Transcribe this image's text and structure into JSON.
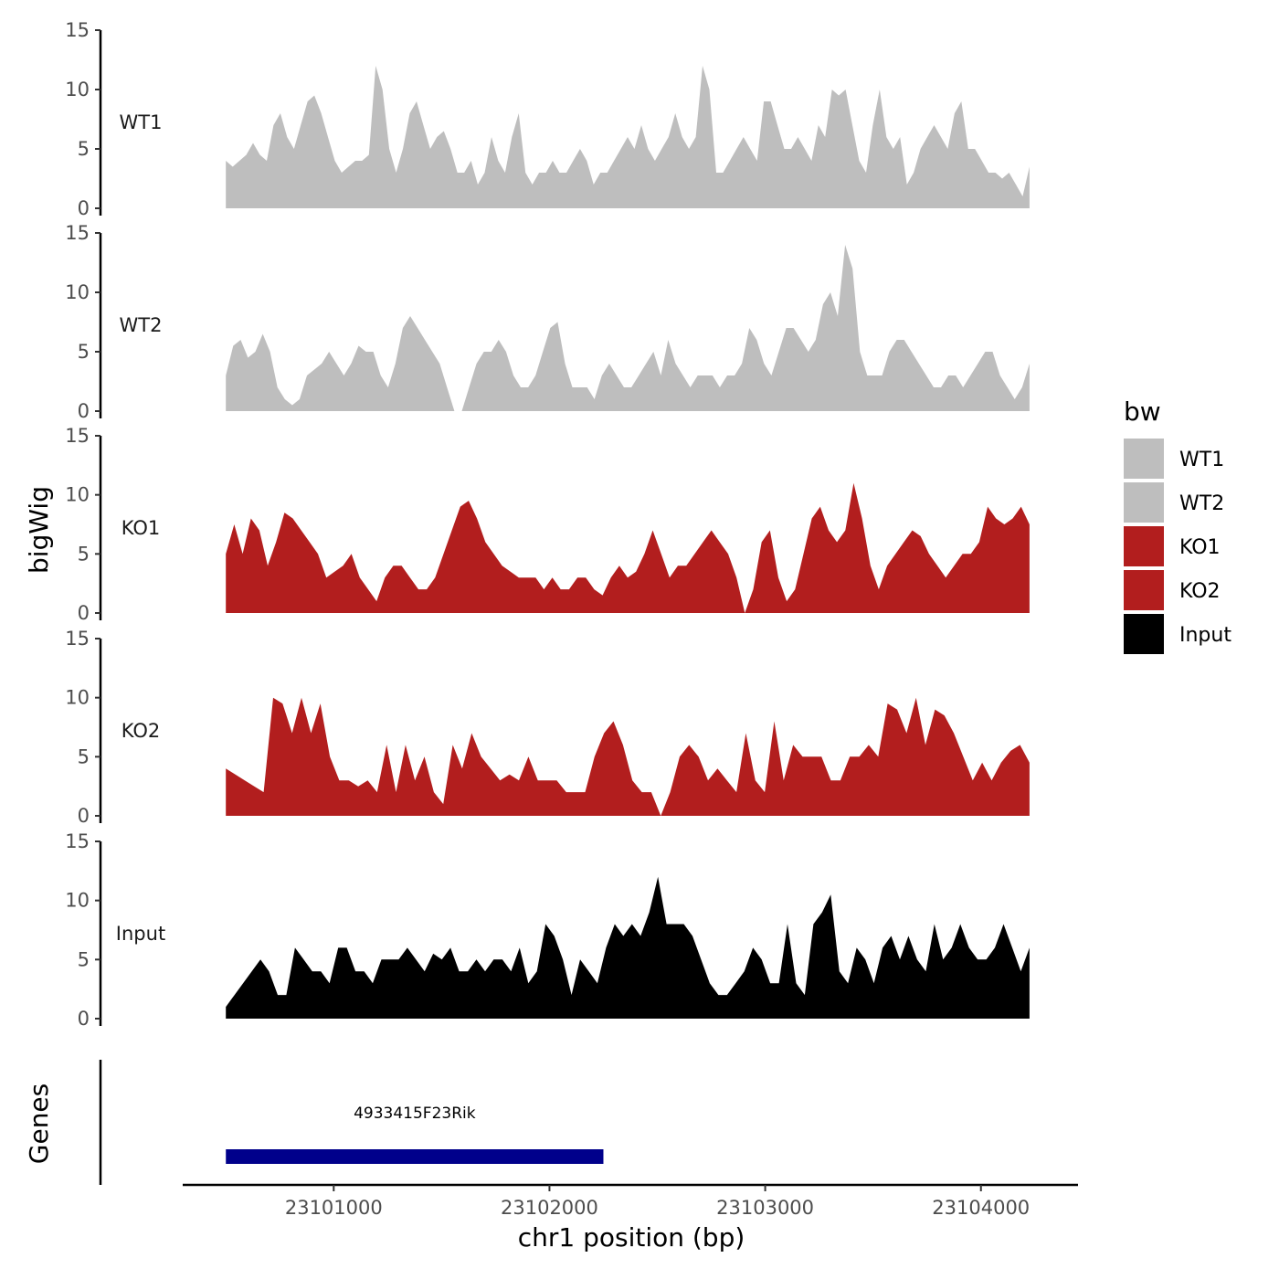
{
  "chart_data": {
    "type": "area",
    "xlabel": "chr1 position (bp)",
    "ylabel": "bigWig",
    "genes_track_label": "Genes",
    "legend": {
      "title": "bw",
      "placement": "right",
      "entries": [
        {
          "name": "WT1",
          "color": "#bebebe"
        },
        {
          "name": "WT2",
          "color": "#bebebe"
        },
        {
          "name": "KO1",
          "color": "#b21e1e"
        },
        {
          "name": "KO2",
          "color": "#b21e1e"
        },
        {
          "name": "Input",
          "color": "#000000"
        }
      ]
    },
    "xlim": [
      23100300,
      23104450
    ],
    "x_ticks": [
      23101000,
      23102000,
      23103000,
      23104000
    ],
    "x_tick_labels": [
      "23101000",
      "23102000",
      "23103000",
      "23104000"
    ],
    "ylim": [
      0,
      15
    ],
    "y_ticks": [
      0,
      5,
      10,
      15
    ],
    "y_tick_labels": [
      "0",
      "5",
      "10",
      "15"
    ],
    "grid": false,
    "x_step": 50,
    "x_start": 23100500,
    "series": [
      {
        "name": "WT1",
        "color": "#bebebe",
        "values": [
          4,
          3.5,
          4,
          4.5,
          5.5,
          4.5,
          4,
          7,
          8,
          6,
          5,
          7,
          9,
          9.5,
          8,
          6,
          4,
          3,
          3.5,
          4,
          4,
          4.5,
          12,
          10,
          5,
          3,
          5,
          8,
          9,
          7,
          5,
          6,
          6.5,
          5,
          3,
          3,
          4,
          2,
          3,
          6,
          4,
          3,
          6,
          8,
          3,
          2,
          3,
          3,
          4,
          3,
          3,
          4,
          5,
          4,
          2,
          3,
          3,
          4,
          5,
          6,
          5,
          7,
          5,
          4,
          5,
          6,
          8,
          6,
          5,
          6,
          12,
          10,
          3,
          3,
          4,
          5,
          6,
          5,
          4,
          9,
          9,
          7,
          5,
          5,
          6,
          5,
          4,
          7,
          6,
          10,
          9.5,
          10,
          7,
          4,
          3,
          7,
          10,
          6,
          5,
          6,
          2,
          3,
          5,
          6,
          7,
          6,
          5,
          8,
          9,
          5,
          5,
          4,
          3,
          3,
          2.5,
          3,
          2,
          1,
          3.5
        ]
      },
      {
        "name": "WT2",
        "color": "#bebebe",
        "values": [
          3,
          5.5,
          6,
          4.5,
          5,
          6.5,
          5,
          2,
          1,
          0.5,
          1,
          3,
          3.5,
          4,
          5,
          4,
          3,
          4,
          5.5,
          5,
          5,
          3,
          2,
          4,
          7,
          8,
          7,
          6,
          5,
          4,
          2,
          0,
          0,
          2,
          4,
          5,
          5,
          6,
          5,
          3,
          2,
          2,
          3,
          5,
          7,
          7.5,
          4,
          2,
          2,
          2,
          1,
          3,
          4,
          3,
          2,
          2,
          3,
          4,
          5,
          3,
          6,
          4,
          3,
          2,
          3,
          3,
          3,
          2,
          3,
          3,
          4,
          7,
          6,
          4,
          3,
          5,
          7,
          7,
          6,
          5,
          6,
          9,
          10,
          8,
          14,
          12,
          5,
          3,
          3,
          3,
          5,
          6,
          6,
          5,
          4,
          3,
          2,
          2,
          3,
          3,
          2,
          3,
          4,
          5,
          5,
          3,
          2,
          1,
          2,
          4
        ]
      },
      {
        "name": "KO1",
        "color": "#b21e1e",
        "values": [
          5,
          7.5,
          5,
          8,
          7,
          4,
          6,
          8.5,
          8,
          7,
          6,
          5,
          3,
          3.5,
          4,
          5,
          3,
          2,
          1,
          3,
          4,
          4,
          3,
          2,
          2,
          3,
          5,
          7,
          9,
          9.5,
          8,
          6,
          5,
          4,
          3.5,
          3,
          3,
          3,
          2,
          3,
          2,
          2,
          3,
          3,
          2,
          1.5,
          3,
          4,
          3,
          3.5,
          5,
          7,
          5,
          3,
          4,
          4,
          5,
          6,
          7,
          6,
          5,
          3,
          0,
          2,
          6,
          7,
          3,
          1,
          2,
          5,
          8,
          9,
          7,
          6,
          7,
          11,
          8,
          4,
          2,
          4,
          5,
          6,
          7,
          6.5,
          5,
          4,
          3,
          4,
          5,
          5,
          6,
          9,
          8,
          7.5,
          8,
          9,
          7.5
        ]
      },
      {
        "name": "KO2",
        "color": "#b21e1e",
        "values": [
          4,
          3.5,
          3,
          2.5,
          2,
          10,
          9.5,
          7,
          10,
          7,
          9.5,
          5,
          3,
          3,
          2.5,
          3,
          2,
          6,
          2,
          6,
          3,
          5,
          2,
          1,
          6,
          4,
          7,
          5,
          4,
          3,
          3.5,
          3,
          5,
          3,
          3,
          3,
          2,
          2,
          2,
          5,
          7,
          8,
          6,
          3,
          2,
          2,
          0,
          2,
          5,
          6,
          5,
          3,
          4,
          3,
          2,
          7,
          3,
          2,
          8,
          3,
          6,
          5,
          5,
          5,
          3,
          3,
          5,
          5,
          6,
          5,
          9.5,
          9,
          7,
          10,
          6,
          9,
          8.5,
          7,
          5,
          3,
          4.5,
          3,
          4.5,
          5.5,
          6,
          4.5
        ]
      },
      {
        "name": "Input",
        "color": "#000000",
        "values": [
          1,
          2,
          3,
          4,
          5,
          4,
          2,
          2,
          6,
          5,
          4,
          4,
          3,
          6,
          6,
          4,
          4,
          3,
          5,
          5,
          5,
          6,
          5,
          4,
          5.5,
          5,
          6,
          4,
          4,
          5,
          4,
          5,
          5,
          4,
          6,
          3,
          4,
          8,
          7,
          5,
          2,
          5,
          4,
          3,
          6,
          8,
          7,
          8,
          7,
          9,
          12,
          8,
          8,
          8,
          7,
          5,
          3,
          2,
          2,
          3,
          4,
          6,
          5,
          3,
          3,
          8,
          3,
          2,
          8,
          9,
          10.5,
          4,
          3,
          6,
          5,
          3,
          6,
          7,
          5,
          7,
          5,
          4,
          8,
          5,
          6,
          8,
          6,
          5,
          5,
          6,
          8,
          6,
          4,
          6
        ]
      }
    ],
    "genes": [
      {
        "name": "4933415F23Rik",
        "start": 23100500,
        "end": 23102250,
        "color": "#00008b"
      }
    ]
  }
}
